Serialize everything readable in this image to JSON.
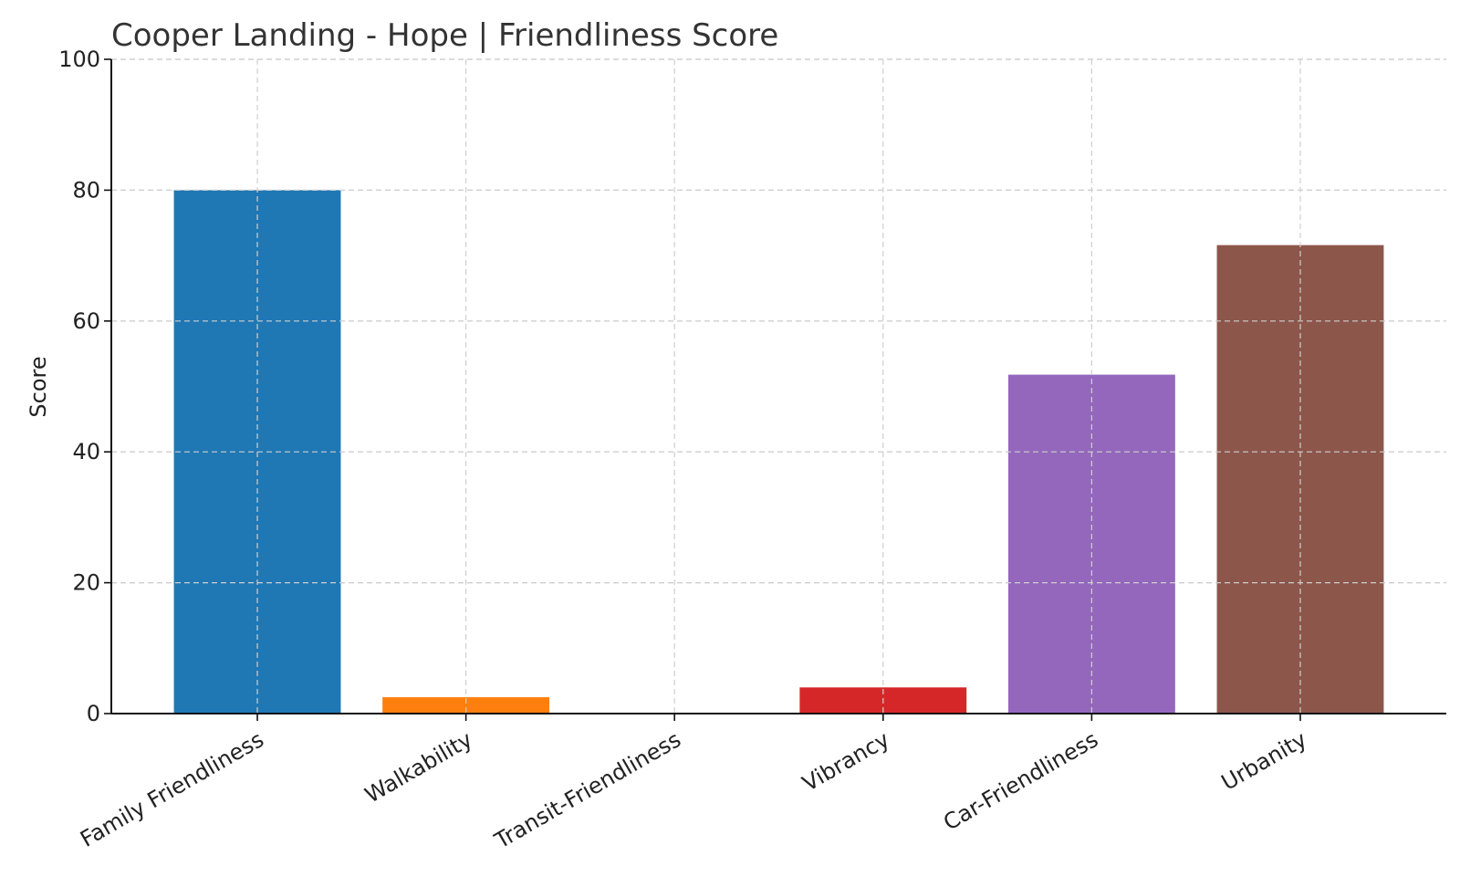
{
  "chart_data": {
    "type": "bar",
    "title": "Cooper Landing - Hope | Friendliness Score",
    "xlabel": "",
    "ylabel": "Score",
    "ylim": [
      0,
      100
    ],
    "yticks": [
      0,
      20,
      40,
      60,
      80,
      100
    ],
    "grid": true,
    "categories": [
      "Family Friendliness",
      "Walkability",
      "Transit-Friendliness",
      "Vibrancy",
      "Car-Friendliness",
      "Urbanity"
    ],
    "values": [
      80,
      2.5,
      0,
      4,
      51.8,
      71.6
    ],
    "colors": [
      "#1f77b4",
      "#ff7f0e",
      "#2ca02c",
      "#d62728",
      "#9467bd",
      "#8c564b"
    ]
  }
}
